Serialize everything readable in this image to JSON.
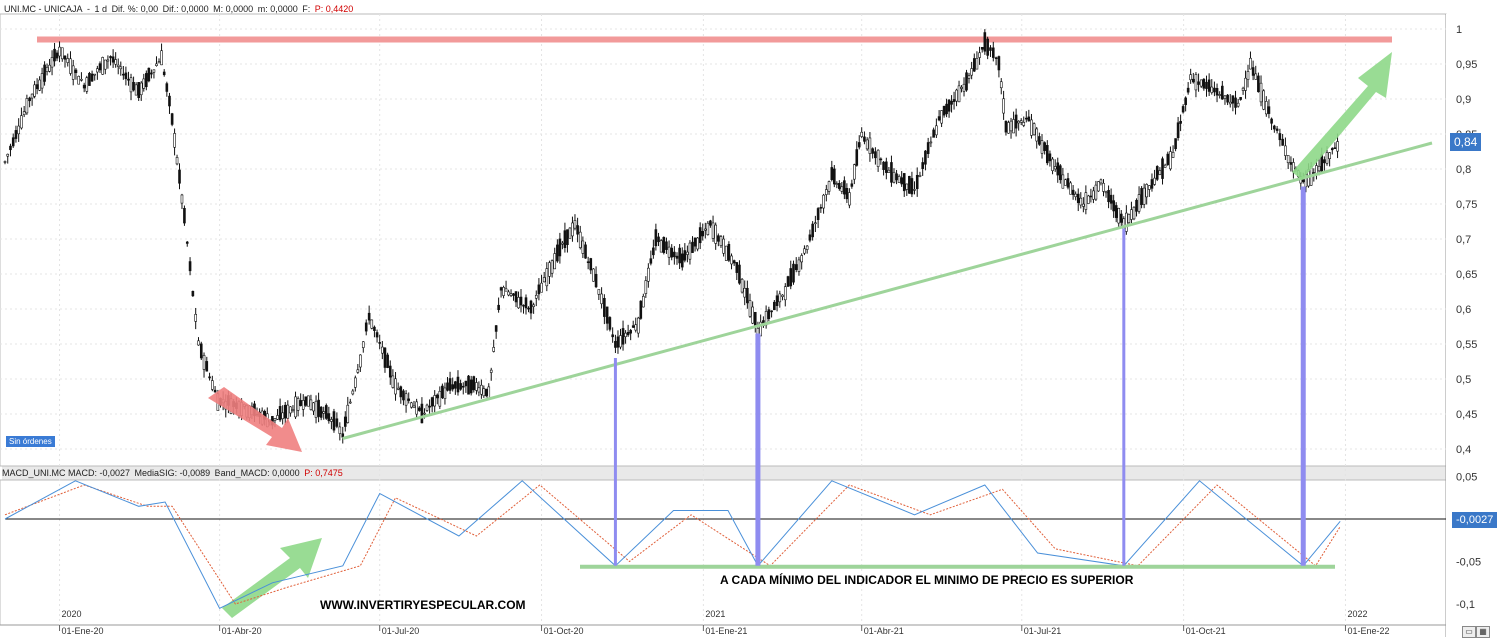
{
  "top_header": {
    "symbol": "UNI.MC - UNICAJA",
    "timeframe": "1 d",
    "diff_pct_label": "Dif. %: 0,00",
    "diff_label": "Dif.: 0,0000",
    "max_label": "M: 0,0000",
    "min_label": "m: 0,0000",
    "f_label": "F:",
    "p_label": "P: 0,4420"
  },
  "macd_header": {
    "macd": "MACD_UNI.MC MACD: -0,0027",
    "signal": "MediaSIG: -0,0089",
    "band": "Band_MACD: 0,0000",
    "p_label": "P: 0,7475"
  },
  "sin_ordenes": "Sin órdenes",
  "current_price_label": "0,84",
  "current_macd_label": "-0,0027",
  "annotation": "A CADA MÍNIMO DEL INDICADOR EL MINIMO DE PRECIO ES SUPERIOR",
  "watermark": "WWW.INVERTIRYESPECULAR.COM",
  "year_labels": [
    "2020",
    "2021",
    "2022"
  ],
  "x_tick_labels": [
    "01-Ene-20",
    "01-Abr-20",
    "01-Jul-20",
    "01-Oct-20",
    "01-Ene-21",
    "01-Abr-21",
    "01-Jul-21",
    "01-Oct-21",
    "01-Ene-22"
  ],
  "price_axis_labels": [
    "1",
    "0,95",
    "0,9",
    "0,85",
    "0,8",
    "0,75",
    "0,7",
    "0,65",
    "0,6",
    "0,55",
    "0,5",
    "0,45",
    "0,4"
  ],
  "macd_axis_labels": [
    "0,05",
    "-0,05",
    "-0,1"
  ],
  "colors": {
    "resistance": "#f29a9a",
    "support": "#9ed49a",
    "vertical_lines": "#8f8cf0",
    "macd_line": "#4a90d9",
    "signal_line": "#e0603a",
    "up_arrow": "#8ed888",
    "down_arrow": "#f08080"
  },
  "chart_data": [
    {
      "type": "line",
      "series_kind": "candlestick",
      "y_axis_range": [
        0.38,
        1.02
      ],
      "price": [
        {
          "x": "2019-12-01",
          "y": 0.81
        },
        {
          "x": "2019-12-15",
          "y": 0.9
        },
        {
          "x": "2020-01-01",
          "y": 0.97
        },
        {
          "x": "2020-01-15",
          "y": 0.92
        },
        {
          "x": "2020-01-30",
          "y": 0.96
        },
        {
          "x": "2020-02-15",
          "y": 0.91
        },
        {
          "x": "2020-02-28",
          "y": 0.96
        },
        {
          "x": "2020-03-05",
          "y": 0.87
        },
        {
          "x": "2020-03-12",
          "y": 0.73
        },
        {
          "x": "2020-03-20",
          "y": 0.55
        },
        {
          "x": "2020-03-31",
          "y": 0.47
        },
        {
          "x": "2020-04-15",
          "y": 0.46
        },
        {
          "x": "2020-05-01",
          "y": 0.44
        },
        {
          "x": "2020-05-20",
          "y": 0.47
        },
        {
          "x": "2020-06-05",
          "y": 0.44
        },
        {
          "x": "2020-06-10",
          "y": 0.42
        },
        {
          "x": "2020-06-20",
          "y": 0.53
        },
        {
          "x": "2020-06-25",
          "y": 0.59
        },
        {
          "x": "2020-07-10",
          "y": 0.49
        },
        {
          "x": "2020-07-25",
          "y": 0.45
        },
        {
          "x": "2020-08-10",
          "y": 0.49
        },
        {
          "x": "2020-08-25",
          "y": 0.49
        },
        {
          "x": "2020-09-01",
          "y": 0.48
        },
        {
          "x": "2020-09-08",
          "y": 0.63
        },
        {
          "x": "2020-09-25",
          "y": 0.6
        },
        {
          "x": "2020-10-10",
          "y": 0.68
        },
        {
          "x": "2020-10-20",
          "y": 0.72
        },
        {
          "x": "2020-11-01",
          "y": 0.64
        },
        {
          "x": "2020-11-12",
          "y": 0.55
        },
        {
          "x": "2020-11-25",
          "y": 0.58
        },
        {
          "x": "2020-12-05",
          "y": 0.7
        },
        {
          "x": "2020-12-20",
          "y": 0.67
        },
        {
          "x": "2021-01-05",
          "y": 0.72
        },
        {
          "x": "2021-01-20",
          "y": 0.66
        },
        {
          "x": "2021-02-01",
          "y": 0.57
        },
        {
          "x": "2021-02-15",
          "y": 0.62
        },
        {
          "x": "2021-03-01",
          "y": 0.69
        },
        {
          "x": "2021-03-15",
          "y": 0.79
        },
        {
          "x": "2021-03-25",
          "y": 0.76
        },
        {
          "x": "2021-04-01",
          "y": 0.85
        },
        {
          "x": "2021-04-15",
          "y": 0.8
        },
        {
          "x": "2021-05-01",
          "y": 0.77
        },
        {
          "x": "2021-05-15",
          "y": 0.87
        },
        {
          "x": "2021-06-01",
          "y": 0.93
        },
        {
          "x": "2021-06-10",
          "y": 0.98
        },
        {
          "x": "2021-06-18",
          "y": 0.95
        },
        {
          "x": "2021-06-22",
          "y": 0.86
        },
        {
          "x": "2021-07-05",
          "y": 0.87
        },
        {
          "x": "2021-07-20",
          "y": 0.8
        },
        {
          "x": "2021-08-05",
          "y": 0.75
        },
        {
          "x": "2021-08-15",
          "y": 0.78
        },
        {
          "x": "2021-08-28",
          "y": 0.72
        },
        {
          "x": "2021-09-10",
          "y": 0.77
        },
        {
          "x": "2021-09-25",
          "y": 0.82
        },
        {
          "x": "2021-10-05",
          "y": 0.93
        },
        {
          "x": "2021-10-20",
          "y": 0.91
        },
        {
          "x": "2021-11-01",
          "y": 0.89
        },
        {
          "x": "2021-11-08",
          "y": 0.95
        },
        {
          "x": "2021-11-20",
          "y": 0.87
        },
        {
          "x": "2021-12-01",
          "y": 0.81
        },
        {
          "x": "2021-12-08",
          "y": 0.78
        },
        {
          "x": "2021-12-20",
          "y": 0.81
        },
        {
          "x": "2021-12-29",
          "y": 0.84
        }
      ],
      "resistance_level": 0.985,
      "support_trendline": [
        {
          "x": "2020-06-10",
          "y": 0.415
        },
        {
          "x": "2022-02-01",
          "y": 0.84
        }
      ],
      "price_lows_marked": [
        {
          "x": "2020-11-12",
          "y": 0.53
        },
        {
          "x": "2021-02-01",
          "y": 0.565
        },
        {
          "x": "2021-08-28",
          "y": 0.715
        },
        {
          "x": "2021-12-08",
          "y": 0.775
        }
      ]
    },
    {
      "type": "line",
      "series_kind": "macd",
      "y_axis_range": [
        -0.11,
        0.06
      ],
      "zero_line": 0,
      "macd_line": [
        {
          "x": "2019-12-01",
          "y": 0.0
        },
        {
          "x": "2020-01-10",
          "y": 0.045
        },
        {
          "x": "2020-02-15",
          "y": 0.015
        },
        {
          "x": "2020-03-01",
          "y": 0.02
        },
        {
          "x": "2020-04-01",
          "y": -0.105
        },
        {
          "x": "2020-05-01",
          "y": -0.075
        },
        {
          "x": "2020-06-10",
          "y": -0.055
        },
        {
          "x": "2020-07-01",
          "y": 0.03
        },
        {
          "x": "2020-08-15",
          "y": -0.02
        },
        {
          "x": "2020-09-20",
          "y": 0.045
        },
        {
          "x": "2020-11-12",
          "y": -0.055
        },
        {
          "x": "2020-12-15",
          "y": 0.01
        },
        {
          "x": "2021-01-15",
          "y": 0.01
        },
        {
          "x": "2021-02-01",
          "y": -0.055
        },
        {
          "x": "2021-03-15",
          "y": 0.045
        },
        {
          "x": "2021-05-01",
          "y": 0.005
        },
        {
          "x": "2021-06-10",
          "y": 0.04
        },
        {
          "x": "2021-07-10",
          "y": -0.04
        },
        {
          "x": "2021-08-28",
          "y": -0.055
        },
        {
          "x": "2021-10-10",
          "y": 0.045
        },
        {
          "x": "2021-12-08",
          "y": -0.055
        },
        {
          "x": "2021-12-29",
          "y": -0.0027
        }
      ],
      "signal_line": [
        {
          "x": "2019-12-01",
          "y": 0.005
        },
        {
          "x": "2020-01-15",
          "y": 0.04
        },
        {
          "x": "2020-02-20",
          "y": 0.015
        },
        {
          "x": "2020-03-05",
          "y": 0.015
        },
        {
          "x": "2020-04-10",
          "y": -0.1
        },
        {
          "x": "2020-05-10",
          "y": -0.08
        },
        {
          "x": "2020-06-20",
          "y": -0.055
        },
        {
          "x": "2020-07-10",
          "y": 0.025
        },
        {
          "x": "2020-08-25",
          "y": -0.02
        },
        {
          "x": "2020-09-30",
          "y": 0.04
        },
        {
          "x": "2020-11-20",
          "y": -0.05
        },
        {
          "x": "2020-12-25",
          "y": 0.005
        },
        {
          "x": "2021-02-08",
          "y": -0.055
        },
        {
          "x": "2021-03-25",
          "y": 0.04
        },
        {
          "x": "2021-05-10",
          "y": 0.005
        },
        {
          "x": "2021-06-20",
          "y": 0.035
        },
        {
          "x": "2021-07-20",
          "y": -0.035
        },
        {
          "x": "2021-09-05",
          "y": -0.055
        },
        {
          "x": "2021-10-20",
          "y": 0.04
        },
        {
          "x": "2021-12-15",
          "y": -0.055
        },
        {
          "x": "2021-12-29",
          "y": -0.0089
        }
      ],
      "support_level": -0.055
    }
  ]
}
